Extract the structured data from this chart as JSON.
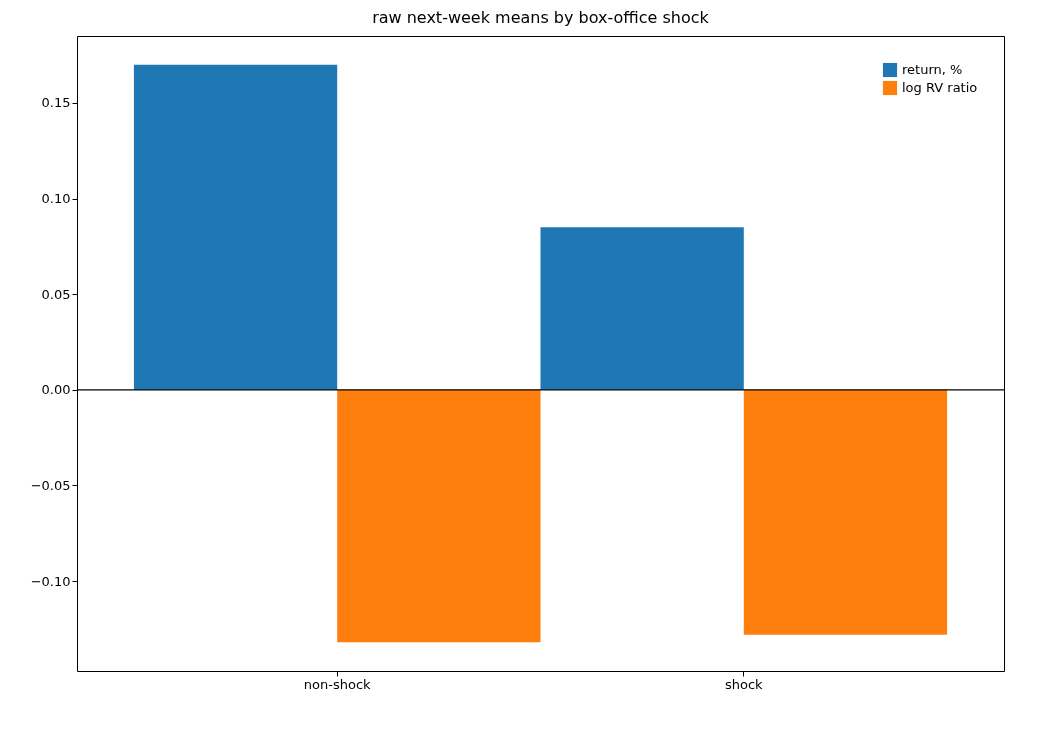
{
  "chart_data": {
    "type": "bar",
    "title": "raw next-week means by box-office shock",
    "categories": [
      "non-shock",
      "shock"
    ],
    "series": [
      {
        "name": "return, %",
        "color": "#1f77b4",
        "values": [
          0.17,
          0.085
        ]
      },
      {
        "name": "log RV ratio",
        "color": "#ff7f0e",
        "values": [
          -0.132,
          -0.128
        ]
      }
    ],
    "ylim": [
      -0.147,
      0.185
    ],
    "yticks": [
      {
        "value": -0.1,
        "label": "−0.10"
      },
      {
        "value": -0.05,
        "label": "−0.05"
      },
      {
        "value": 0,
        "label": "0.00"
      },
      {
        "value": 0.05,
        "label": "0.05"
      },
      {
        "value": 0.1,
        "label": "0.10"
      },
      {
        "value": 0.15,
        "label": "0.15"
      }
    ],
    "ref_lines": [
      {
        "axis": "y",
        "value": 0,
        "color": "#000000"
      }
    ],
    "grid": false,
    "legend": "top right"
  }
}
